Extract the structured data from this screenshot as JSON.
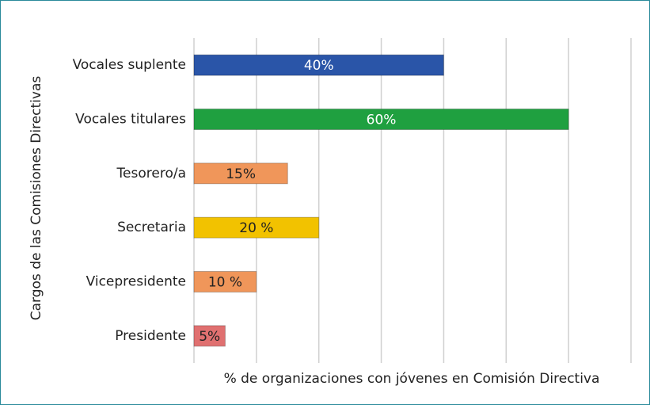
{
  "chart_data": {
    "type": "barh",
    "y_label": "Cargos de las Comisiones Directivas",
    "x_label": "% de organizaciones con jóvenes en Comisión Directiva",
    "categories": [
      "Vocales suplente",
      "Vocales titulares",
      "Tesorero/a",
      "Secretaria",
      "Vicepresidente",
      "Presidente"
    ],
    "values": [
      40,
      60,
      15,
      20,
      10,
      5
    ],
    "value_labels": [
      "40%",
      "60%",
      "15%",
      "20 %",
      "10 %",
      "5%"
    ],
    "colors": [
      "#2a55a8",
      "#1fa040",
      "#f0965a",
      "#f2c200",
      "#f0965a",
      "#e07070"
    ],
    "label_colors": [
      "#ffffff",
      "#ffffff",
      "#222222",
      "#222222",
      "#222222",
      "#222222"
    ],
    "xlim": [
      0,
      70
    ],
    "xticks": [
      0,
      10,
      20,
      30,
      40,
      50,
      60,
      70
    ],
    "grid": true
  }
}
